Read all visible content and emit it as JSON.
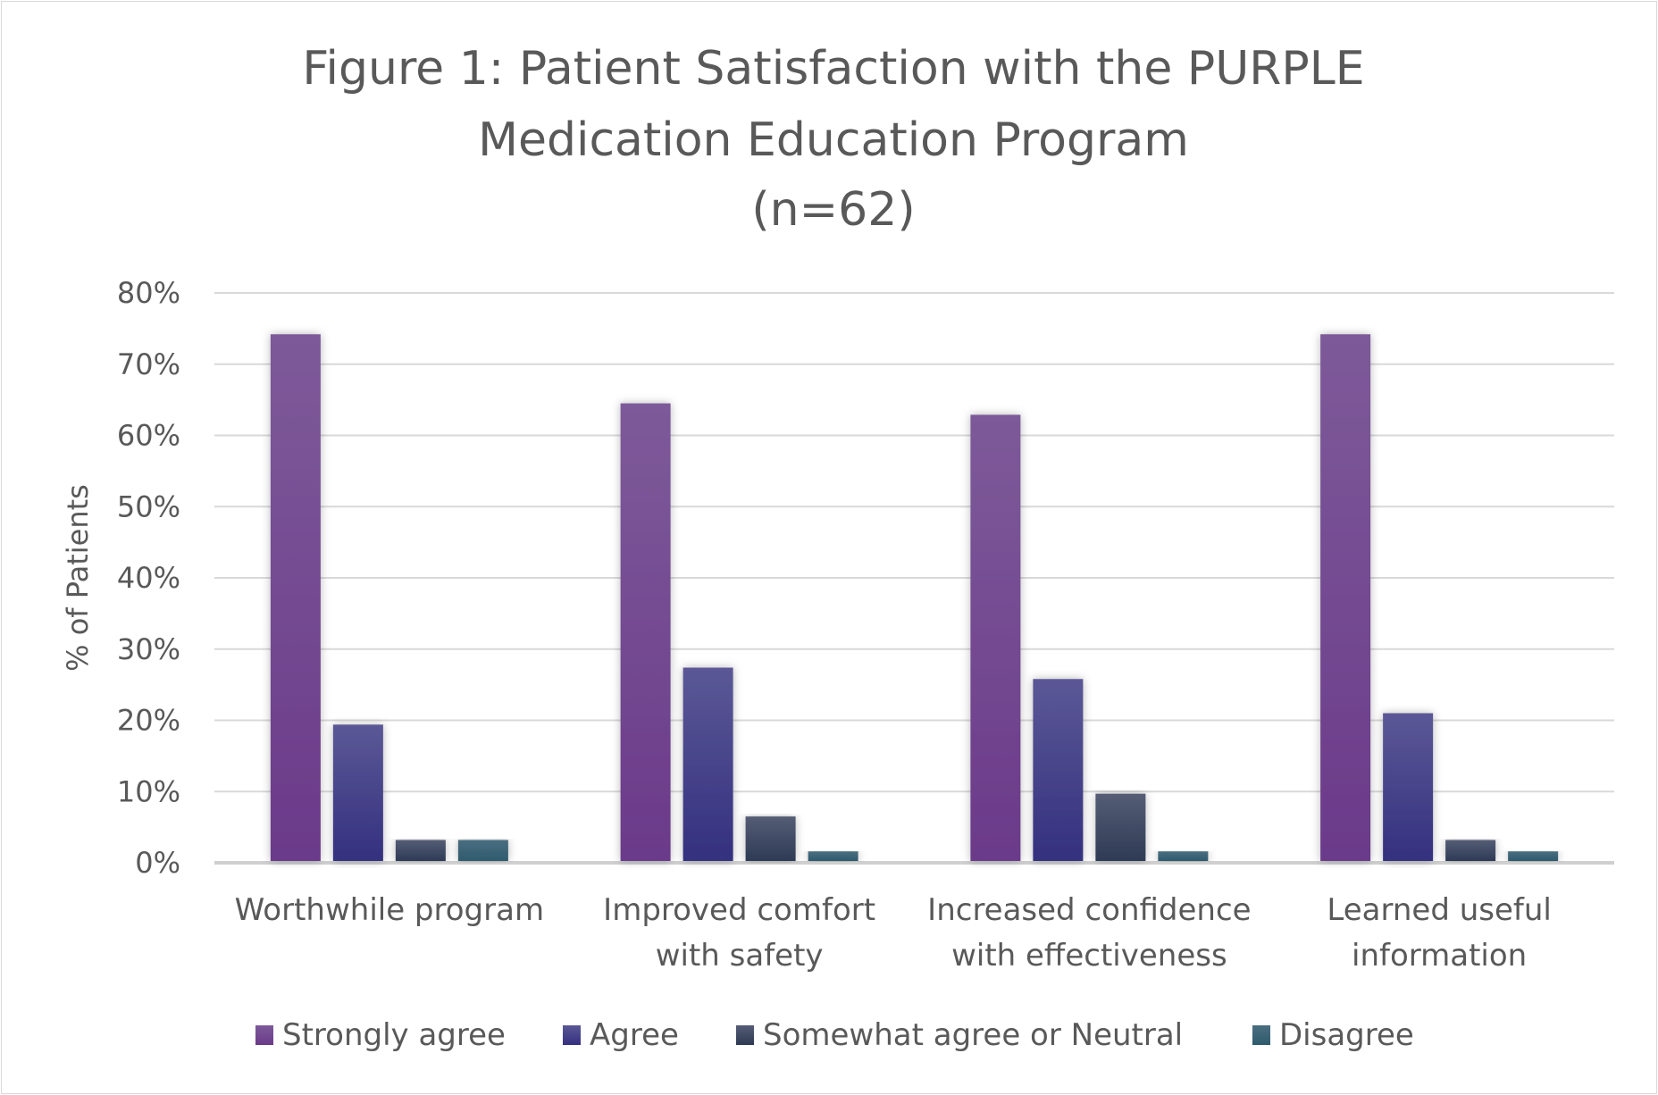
{
  "chart_data": {
    "type": "bar",
    "title": [
      "Figure 1: Patient Satisfaction with the PURPLE",
      "Medication Education Program",
      "(n=62)"
    ],
    "xlabel": "",
    "ylabel": "% of Patients",
    "ylim": [
      0,
      0.8
    ],
    "yticks": [
      0,
      0.1,
      0.2,
      0.3,
      0.4,
      0.5,
      0.6,
      0.7,
      0.8
    ],
    "ytick_labels": [
      "0%",
      "10%",
      "20%",
      "30%",
      "40%",
      "50%",
      "60%",
      "70%",
      "80%"
    ],
    "grid": true,
    "legend_position": "bottom",
    "categories": [
      [
        "Worthwhile program"
      ],
      [
        "Improved comfort",
        "with safety"
      ],
      [
        "Increased confidence",
        "with effectiveness"
      ],
      [
        "Learned useful",
        "information"
      ]
    ],
    "series": [
      {
        "name": "Strongly agree",
        "color": "#6b3a8a",
        "color_top": "#7d5a99",
        "values": [
          0.742,
          0.645,
          0.629,
          0.742
        ]
      },
      {
        "name": "Agree",
        "color": "#34307f",
        "color_top": "#5b5896",
        "values": [
          0.194,
          0.274,
          0.258,
          0.21
        ]
      },
      {
        "name": "Somewhat agree or Neutral",
        "color": "#2e3a55",
        "color_top": "#555d75",
        "values": [
          0.032,
          0.065,
          0.097,
          0.032
        ]
      },
      {
        "name": "Disagree",
        "color": "#2f5a6e",
        "color_top": "#4a6e80",
        "values": [
          0.032,
          0.016,
          0.016,
          0.016
        ]
      }
    ]
  }
}
